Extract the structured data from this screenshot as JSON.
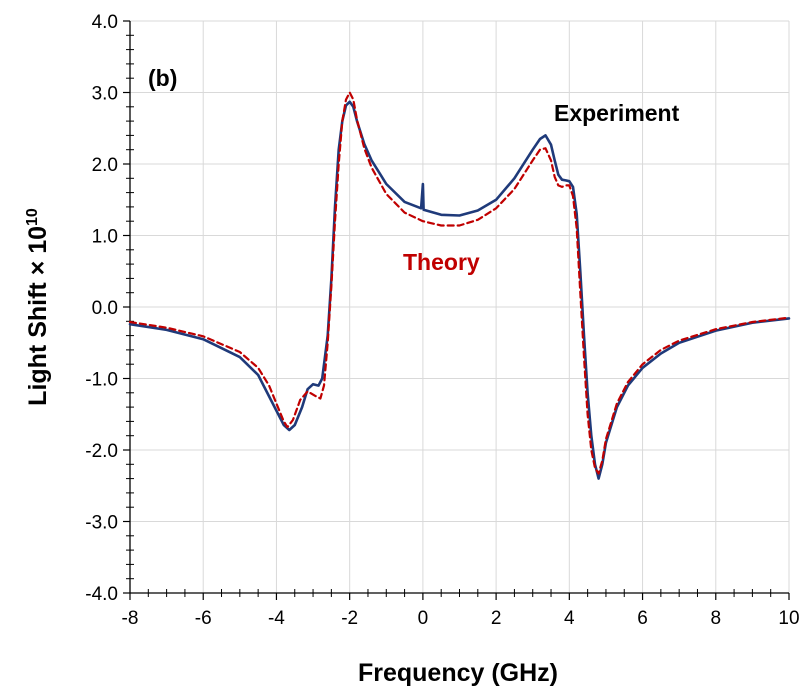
{
  "chart_data": {
    "type": "line",
    "title": "",
    "panel_label": "(b)",
    "xlabel": "Frequency (GHz)",
    "ylabel_main": "Light Shift × 10",
    "ylabel_exp": "10",
    "xlim": [
      -8,
      10
    ],
    "ylim": [
      -4,
      4
    ],
    "x_ticks": [
      -8,
      -6,
      -4,
      -2,
      0,
      2,
      4,
      6,
      8,
      10
    ],
    "x_tick_labels": [
      "-8",
      "-6",
      "-4",
      "-2",
      "0",
      "2",
      "4",
      "6",
      "8",
      "10"
    ],
    "y_ticks": [
      -4,
      -3,
      -2,
      -1,
      0,
      1,
      2,
      3,
      4
    ],
    "y_tick_labels": [
      "-4.0",
      "-3.0",
      "-2.0",
      "-1.0",
      "0.0",
      "1.0",
      "2.0",
      "3.0",
      "4.0"
    ],
    "grid": true,
    "annotations": [
      {
        "text": "Experiment",
        "color": "#000000"
      },
      {
        "text": "Theory",
        "color": "#c00000"
      }
    ],
    "series": [
      {
        "name": "Experiment",
        "color": "#1f3a7a",
        "style": "solid",
        "points": [
          [
            -8,
            -0.24
          ],
          [
            -7,
            -0.32
          ],
          [
            -6,
            -0.45
          ],
          [
            -5,
            -0.7
          ],
          [
            -4.5,
            -0.95
          ],
          [
            -4.2,
            -1.25
          ],
          [
            -4.0,
            -1.45
          ],
          [
            -3.8,
            -1.65
          ],
          [
            -3.65,
            -1.72
          ],
          [
            -3.5,
            -1.65
          ],
          [
            -3.3,
            -1.4
          ],
          [
            -3.15,
            -1.15
          ],
          [
            -3.0,
            -1.08
          ],
          [
            -2.85,
            -1.1
          ],
          [
            -2.75,
            -1.0
          ],
          [
            -2.6,
            -0.4
          ],
          [
            -2.5,
            0.4
          ],
          [
            -2.4,
            1.4
          ],
          [
            -2.3,
            2.2
          ],
          [
            -2.2,
            2.6
          ],
          [
            -2.1,
            2.82
          ],
          [
            -2.0,
            2.87
          ],
          [
            -1.9,
            2.8
          ],
          [
            -1.8,
            2.6
          ],
          [
            -1.6,
            2.28
          ],
          [
            -1.4,
            2.05
          ],
          [
            -1.0,
            1.72
          ],
          [
            -0.5,
            1.47
          ],
          [
            -0.05,
            1.38
          ],
          [
            0.0,
            1.72
          ],
          [
            0.02,
            1.36
          ],
          [
            0.5,
            1.29
          ],
          [
            1.0,
            1.28
          ],
          [
            1.5,
            1.35
          ],
          [
            2.0,
            1.5
          ],
          [
            2.5,
            1.8
          ],
          [
            3.0,
            2.2
          ],
          [
            3.2,
            2.35
          ],
          [
            3.35,
            2.4
          ],
          [
            3.5,
            2.27
          ],
          [
            3.6,
            2.05
          ],
          [
            3.7,
            1.85
          ],
          [
            3.8,
            1.78
          ],
          [
            3.9,
            1.77
          ],
          [
            4.0,
            1.76
          ],
          [
            4.1,
            1.68
          ],
          [
            4.2,
            1.3
          ],
          [
            4.3,
            0.5
          ],
          [
            4.4,
            -0.4
          ],
          [
            4.5,
            -1.2
          ],
          [
            4.6,
            -1.8
          ],
          [
            4.7,
            -2.2
          ],
          [
            4.8,
            -2.4
          ],
          [
            4.9,
            -2.2
          ],
          [
            5.0,
            -1.9
          ],
          [
            5.3,
            -1.4
          ],
          [
            5.6,
            -1.1
          ],
          [
            6.0,
            -0.85
          ],
          [
            6.5,
            -0.65
          ],
          [
            7.0,
            -0.5
          ],
          [
            8.0,
            -0.33
          ],
          [
            9.0,
            -0.22
          ],
          [
            10.0,
            -0.16
          ]
        ]
      },
      {
        "name": "Theory",
        "color": "#c00000",
        "style": "dashed",
        "points": [
          [
            -8,
            -0.21
          ],
          [
            -7,
            -0.29
          ],
          [
            -6,
            -0.41
          ],
          [
            -5,
            -0.63
          ],
          [
            -4.5,
            -0.85
          ],
          [
            -4.2,
            -1.1
          ],
          [
            -4.0,
            -1.35
          ],
          [
            -3.8,
            -1.6
          ],
          [
            -3.7,
            -1.68
          ],
          [
            -3.55,
            -1.58
          ],
          [
            -3.35,
            -1.3
          ],
          [
            -3.15,
            -1.18
          ],
          [
            -2.95,
            -1.24
          ],
          [
            -2.8,
            -1.28
          ],
          [
            -2.7,
            -1.1
          ],
          [
            -2.6,
            -0.5
          ],
          [
            -2.5,
            0.3
          ],
          [
            -2.4,
            1.2
          ],
          [
            -2.3,
            2.0
          ],
          [
            -2.2,
            2.6
          ],
          [
            -2.1,
            2.9
          ],
          [
            -2.0,
            3.0
          ],
          [
            -1.9,
            2.9
          ],
          [
            -1.8,
            2.62
          ],
          [
            -1.6,
            2.22
          ],
          [
            -1.4,
            1.95
          ],
          [
            -1.0,
            1.58
          ],
          [
            -0.5,
            1.32
          ],
          [
            0.0,
            1.2
          ],
          [
            0.5,
            1.14
          ],
          [
            1.0,
            1.14
          ],
          [
            1.5,
            1.22
          ],
          [
            2.0,
            1.38
          ],
          [
            2.5,
            1.65
          ],
          [
            3.0,
            2.05
          ],
          [
            3.2,
            2.2
          ],
          [
            3.35,
            2.22
          ],
          [
            3.5,
            2.05
          ],
          [
            3.6,
            1.82
          ],
          [
            3.7,
            1.7
          ],
          [
            3.8,
            1.68
          ],
          [
            3.9,
            1.7
          ],
          [
            4.0,
            1.7
          ],
          [
            4.1,
            1.55
          ],
          [
            4.2,
            1.1
          ],
          [
            4.3,
            0.2
          ],
          [
            4.4,
            -0.7
          ],
          [
            4.5,
            -1.5
          ],
          [
            4.6,
            -2.0
          ],
          [
            4.7,
            -2.25
          ],
          [
            4.8,
            -2.33
          ],
          [
            4.9,
            -2.15
          ],
          [
            5.0,
            -1.85
          ],
          [
            5.3,
            -1.35
          ],
          [
            5.6,
            -1.05
          ],
          [
            6.0,
            -0.8
          ],
          [
            6.5,
            -0.6
          ],
          [
            7.0,
            -0.47
          ],
          [
            8.0,
            -0.31
          ],
          [
            9.0,
            -0.21
          ],
          [
            10.0,
            -0.15
          ]
        ]
      }
    ]
  }
}
